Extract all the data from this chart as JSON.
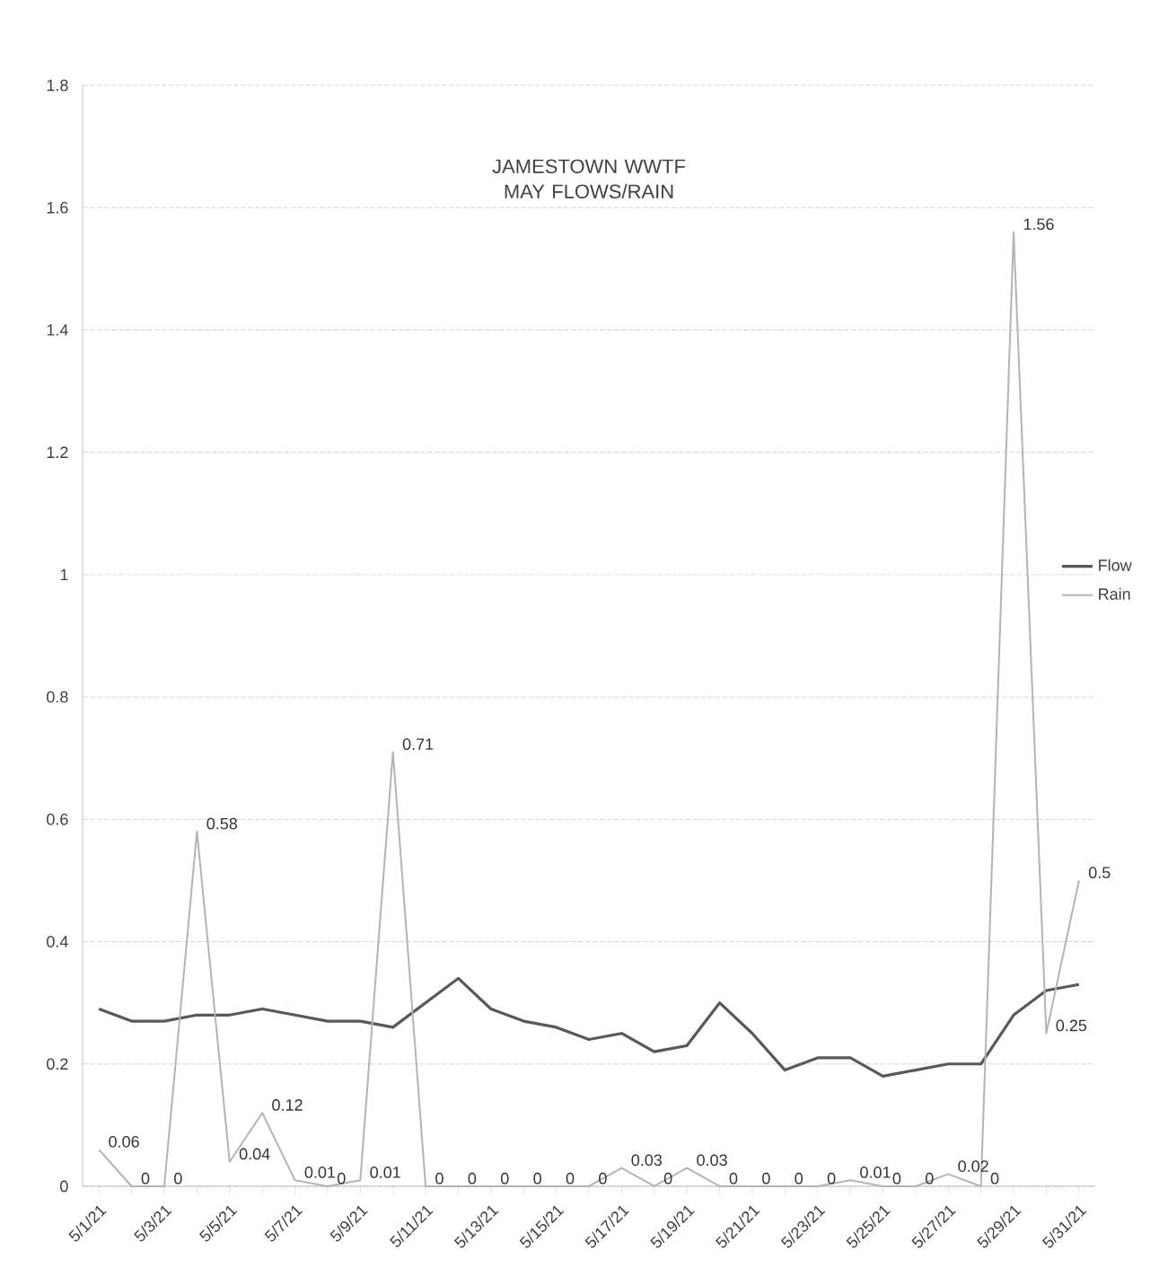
{
  "chart_data": {
    "type": "line",
    "title": "JAMESTOWN WWTF MAY FLOWS/RAIN",
    "categories": [
      "5/1/21",
      null,
      "5/3/21",
      null,
      "5/5/21",
      null,
      "5/7/21",
      null,
      "5/9/21",
      null,
      "5/11/21",
      null,
      "5/13/21",
      null,
      "5/15/21",
      null,
      "5/17/21",
      null,
      "5/19/21",
      null,
      "5/21/21",
      null,
      "5/23/21",
      null,
      "5/25/21",
      null,
      "5/27/21",
      null,
      "5/29/21",
      null,
      "5/31/21"
    ],
    "series": [
      {
        "name": "Flow",
        "color": "#595959",
        "values": [
          0.29,
          0.27,
          0.27,
          0.28,
          0.28,
          0.29,
          0.28,
          0.27,
          0.27,
          0.26,
          0.3,
          0.34,
          0.29,
          0.27,
          0.26,
          0.24,
          0.25,
          0.22,
          0.23,
          0.3,
          0.25,
          0.19,
          0.21,
          0.21,
          0.18,
          0.19,
          0.2,
          0.2,
          0.28,
          0.32,
          0.33
        ]
      },
      {
        "name": "Rain",
        "color": "#b4b4b4",
        "values": [
          0.06,
          0,
          0,
          0.58,
          0.04,
          0.12,
          0.01,
          0,
          0.01,
          0.71,
          0,
          0,
          0,
          0,
          0,
          0,
          0.03,
          0,
          0.03,
          0,
          0,
          0,
          0,
          0.01,
          0,
          0,
          0.02,
          0,
          1.56,
          0.25,
          0.5
        ],
        "value_labels": [
          "0.06",
          "0",
          "0",
          "0.58",
          "0.04",
          "0.12",
          "0.01",
          "0",
          "0.01",
          "0.71",
          "0",
          "0",
          "0",
          "0",
          "0",
          "0",
          "0.03",
          "0",
          "0.03",
          "0",
          "0",
          "0",
          "0",
          "0.01",
          "0",
          "0",
          "0.02",
          "0",
          "1.56",
          "0.25",
          "0.5"
        ]
      }
    ],
    "ylim": [
      0,
      1.8
    ],
    "yticks": [
      0,
      0.2,
      0.4,
      0.6,
      0.8,
      1,
      1.2,
      1.4,
      1.6,
      1.8
    ],
    "grid": "y",
    "legend": "right",
    "marker": "none",
    "line_style": "solid"
  }
}
